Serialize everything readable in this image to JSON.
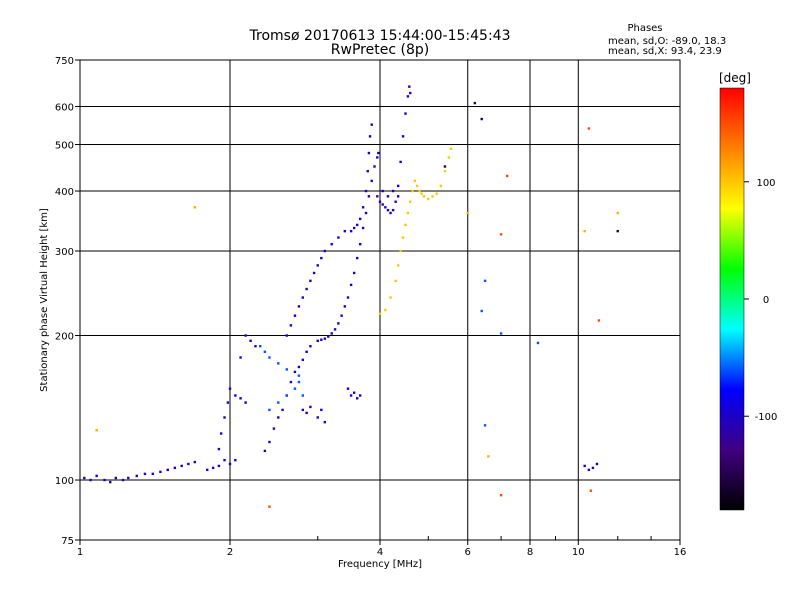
{
  "chart_data": {
    "type": "scatter",
    "title_line1": "Tromsø 20170613 15:44:00-15:45:43",
    "title_line2": "RwPretec (8p)",
    "xlabel": "Frequency [MHz]",
    "ylabel": "Stationary phase Virtual Height [km]",
    "xscale": "log",
    "yscale": "log",
    "xlim": [
      1,
      16
    ],
    "ylim": [
      75,
      750
    ],
    "x_ticks": [
      1,
      2,
      4,
      6,
      8,
      10,
      16
    ],
    "x_tick_labels": [
      "1",
      "2",
      "4",
      "6",
      "8",
      "10",
      "16"
    ],
    "y_ticks": [
      75,
      100,
      200,
      300,
      400,
      500,
      600,
      750
    ],
    "y_tick_labels": [
      "75",
      "100",
      "200",
      "300",
      "400",
      "500",
      "600",
      "750"
    ],
    "grid": true,
    "phase_box": {
      "heading": "Phases",
      "line_o": "mean, sd,O: -89.0, 18.3",
      "line_x": "mean, sd,X:  93.4, 23.9"
    },
    "colorbar": {
      "label": "[deg]",
      "range": [
        -180,
        180
      ],
      "ticks": [
        100,
        0,
        -100
      ],
      "tick_labels": [
        "100",
        "0",
        "-100"
      ],
      "colors": [
        "#ff0000",
        "#ff8000",
        "#ffff00",
        "#00ff00",
        "#00ffff",
        "#0000ff",
        "#400080",
        "#000000"
      ]
    },
    "series": [
      {
        "name": "O-mode trace (blue, ~-100 deg)",
        "phase": -100,
        "points": [
          [
            1.02,
            101
          ],
          [
            1.05,
            100
          ],
          [
            1.08,
            102
          ],
          [
            1.12,
            100
          ],
          [
            1.15,
            99
          ],
          [
            1.18,
            101
          ],
          [
            1.22,
            100
          ],
          [
            1.25,
            101
          ],
          [
            1.3,
            102
          ],
          [
            1.35,
            103
          ],
          [
            1.4,
            103
          ],
          [
            1.45,
            104
          ],
          [
            1.5,
            105
          ],
          [
            1.55,
            106
          ],
          [
            1.6,
            107
          ],
          [
            1.65,
            108
          ],
          [
            1.7,
            109
          ],
          [
            1.8,
            105
          ],
          [
            1.85,
            106
          ],
          [
            1.9,
            107
          ],
          [
            1.95,
            110
          ],
          [
            2.0,
            108
          ],
          [
            2.05,
            110
          ],
          [
            1.9,
            116
          ],
          [
            1.92,
            125
          ],
          [
            1.95,
            135
          ],
          [
            1.98,
            145
          ],
          [
            2.0,
            155
          ],
          [
            2.05,
            150
          ],
          [
            2.1,
            148
          ],
          [
            2.15,
            145
          ],
          [
            2.1,
            180
          ],
          [
            2.15,
            200
          ],
          [
            2.2,
            195
          ],
          [
            2.25,
            190
          ],
          [
            2.35,
            115
          ],
          [
            2.4,
            120
          ],
          [
            2.45,
            128
          ],
          [
            2.5,
            135
          ],
          [
            2.55,
            140
          ],
          [
            2.6,
            150
          ],
          [
            2.65,
            160
          ],
          [
            2.7,
            168
          ],
          [
            2.75,
            172
          ],
          [
            2.8,
            178
          ],
          [
            2.85,
            185
          ],
          [
            2.9,
            190
          ],
          [
            2.6,
            200
          ],
          [
            2.65,
            210
          ],
          [
            2.7,
            220
          ],
          [
            2.75,
            230
          ],
          [
            2.8,
            240
          ],
          [
            2.85,
            250
          ],
          [
            2.9,
            260
          ],
          [
            2.95,
            270
          ],
          [
            3.0,
            280
          ],
          [
            3.05,
            290
          ],
          [
            3.1,
            300
          ],
          [
            3.2,
            310
          ],
          [
            3.3,
            320
          ],
          [
            3.4,
            330
          ],
          [
            3.5,
            330
          ],
          [
            3.55,
            335
          ],
          [
            3.6,
            340
          ],
          [
            3.65,
            350
          ],
          [
            3.7,
            370
          ],
          [
            3.75,
            400
          ],
          [
            3.78,
            440
          ],
          [
            3.8,
            480
          ],
          [
            3.82,
            520
          ],
          [
            3.85,
            550
          ],
          [
            3.0,
            195
          ],
          [
            3.05,
            196
          ],
          [
            3.1,
            197
          ],
          [
            3.15,
            199
          ],
          [
            3.2,
            202
          ],
          [
            3.25,
            206
          ],
          [
            3.3,
            212
          ],
          [
            3.35,
            220
          ],
          [
            3.4,
            230
          ],
          [
            3.45,
            240
          ],
          [
            3.5,
            255
          ],
          [
            3.55,
            270
          ],
          [
            3.6,
            290
          ],
          [
            3.65,
            310
          ],
          [
            3.7,
            335
          ],
          [
            3.75,
            360
          ],
          [
            3.8,
            390
          ],
          [
            3.85,
            420
          ],
          [
            3.9,
            450
          ],
          [
            3.95,
            470
          ],
          [
            3.97,
            480
          ],
          [
            4.0,
            380
          ],
          [
            4.05,
            375
          ],
          [
            4.1,
            370
          ],
          [
            4.15,
            365
          ],
          [
            4.2,
            360
          ],
          [
            4.25,
            365
          ],
          [
            4.3,
            380
          ],
          [
            4.35,
            410
          ],
          [
            4.4,
            460
          ],
          [
            4.45,
            520
          ],
          [
            4.5,
            580
          ],
          [
            4.55,
            630
          ],
          [
            4.58,
            660
          ],
          [
            4.6,
            640
          ],
          [
            3.95,
            390
          ],
          [
            4.05,
            400
          ],
          [
            4.15,
            390
          ],
          [
            4.25,
            400
          ],
          [
            4.35,
            390
          ],
          [
            3.45,
            155
          ],
          [
            3.5,
            150
          ],
          [
            3.55,
            152
          ],
          [
            3.6,
            148
          ],
          [
            3.65,
            150
          ],
          [
            2.8,
            140
          ],
          [
            2.85,
            138
          ],
          [
            2.9,
            142
          ],
          [
            3.0,
            135
          ],
          [
            3.05,
            140
          ],
          [
            3.1,
            132
          ]
        ]
      },
      {
        "name": "Scattered blue/cyan (~-60 deg)",
        "phase": -60,
        "points": [
          [
            2.4,
            140
          ],
          [
            2.5,
            145
          ],
          [
            2.6,
            150
          ],
          [
            2.7,
            155
          ],
          [
            2.75,
            160
          ],
          [
            2.8,
            150
          ],
          [
            2.3,
            190
          ],
          [
            2.35,
            185
          ],
          [
            2.4,
            180
          ],
          [
            2.5,
            175
          ],
          [
            2.6,
            170
          ],
          [
            2.75,
            165
          ],
          [
            6.5,
            260
          ],
          [
            6.5,
            130
          ],
          [
            8.3,
            193
          ],
          [
            7.0,
            202
          ],
          [
            6.4,
            225
          ]
        ]
      },
      {
        "name": "X-mode trace (yellow, ~+100 deg)",
        "phase": 100,
        "points": [
          [
            4.0,
            222
          ],
          [
            4.1,
            226
          ],
          [
            4.2,
            240
          ],
          [
            4.3,
            260
          ],
          [
            4.35,
            280
          ],
          [
            4.4,
            300
          ],
          [
            4.45,
            320
          ],
          [
            4.5,
            340
          ],
          [
            4.55,
            360
          ],
          [
            4.6,
            380
          ],
          [
            4.65,
            400
          ],
          [
            4.7,
            420
          ],
          [
            4.75,
            410
          ],
          [
            4.8,
            400
          ],
          [
            4.85,
            395
          ],
          [
            4.9,
            390
          ],
          [
            5.0,
            385
          ],
          [
            5.1,
            390
          ],
          [
            5.2,
            395
          ],
          [
            5.3,
            410
          ],
          [
            5.4,
            440
          ],
          [
            5.5,
            470
          ],
          [
            5.55,
            490
          ]
        ]
      },
      {
        "name": "Scattered orange/red (~+150 deg)",
        "phase": 150,
        "points": [
          [
            7.0,
            93
          ],
          [
            10.6,
            95
          ],
          [
            10.5,
            540
          ],
          [
            7.2,
            430
          ],
          [
            7.0,
            325
          ],
          [
            11.0,
            215
          ],
          [
            2.4,
            88
          ]
        ]
      },
      {
        "name": "Scattered yellow (~+110 deg)",
        "phase": 110,
        "points": [
          [
            1.08,
            127
          ],
          [
            1.7,
            370
          ],
          [
            6.6,
            112
          ],
          [
            12.0,
            360
          ],
          [
            10.3,
            330
          ],
          [
            6.0,
            360
          ]
        ]
      },
      {
        "name": "Scattered dark (~-150 deg)",
        "phase": -150,
        "points": [
          [
            6.2,
            610
          ],
          [
            6.4,
            565
          ],
          [
            12.0,
            330
          ],
          [
            5.4,
            450
          ]
        ]
      },
      {
        "name": "Scattered blue cluster near 10 MHz",
        "phase": -100,
        "points": [
          [
            10.3,
            107
          ],
          [
            10.5,
            105
          ],
          [
            10.7,
            106
          ],
          [
            10.9,
            108
          ]
        ]
      }
    ]
  }
}
